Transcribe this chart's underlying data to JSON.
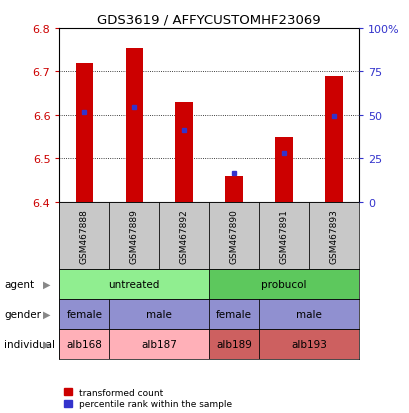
{
  "title": "GDS3619 / AFFYCUSTOMHF23069",
  "samples": [
    "GSM467888",
    "GSM467889",
    "GSM467892",
    "GSM467890",
    "GSM467891",
    "GSM467893"
  ],
  "red_values": [
    6.72,
    6.755,
    6.63,
    6.46,
    6.55,
    6.69
  ],
  "blue_values": [
    6.607,
    6.618,
    6.565,
    6.467,
    6.512,
    6.598
  ],
  "y_min": 6.4,
  "y_max": 6.8,
  "y_ticks": [
    6.4,
    6.5,
    6.6,
    6.7,
    6.8
  ],
  "right_ticks": [
    0,
    25,
    50,
    75,
    100
  ],
  "right_tick_positions": [
    6.4,
    6.5,
    6.6,
    6.7,
    6.8
  ],
  "agent_labels": [
    [
      "untreated",
      0,
      2
    ],
    [
      "probucol",
      3,
      5
    ]
  ],
  "gender_labels": [
    [
      "female",
      0,
      0
    ],
    [
      "male",
      1,
      2
    ],
    [
      "female",
      3,
      3
    ],
    [
      "male",
      4,
      5
    ]
  ],
  "individual_labels": [
    [
      "alb168",
      0,
      0
    ],
    [
      "alb187",
      1,
      2
    ],
    [
      "alb189",
      3,
      3
    ],
    [
      "alb193",
      4,
      5
    ]
  ],
  "agent_colors": [
    "#90EE90",
    "#5DC85D"
  ],
  "gender_color": "#9090D0",
  "individual_colors_light": "#FFB0B8",
  "individual_colors_dark": "#CD6060",
  "bar_color": "#CC0000",
  "blue_color": "#3333CC",
  "left_tick_color": "#CC0000",
  "right_tick_color": "#3333CC",
  "bar_width": 0.35,
  "gsm_bg": "#C8C8C8",
  "row_labels": [
    "agent",
    "gender",
    "individual"
  ],
  "legend_red": "transformed count",
  "legend_blue": "percentile rank within the sample"
}
